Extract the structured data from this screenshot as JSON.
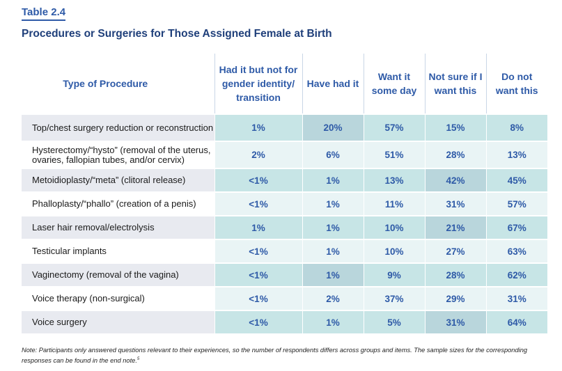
{
  "table_label": "Table 2.4",
  "title": "Procedures or Surgeries for Those Assigned Female at Birth",
  "headers": [
    "Type of Procedure",
    "Had it but not for gender identity/ transition",
    "Have had it",
    "Want it some day",
    "Not sure if I want this",
    "Do not want this"
  ],
  "rows": [
    {
      "name": "Top/chest surgery reduction or reconstruction",
      "values": [
        "1%",
        "20%",
        "57%",
        "15%",
        "8%"
      ]
    },
    {
      "name": "Hysterectomy/“hysto” (removal of the uterus, ovaries, fallopian tubes, and/or cervix)",
      "values": [
        "2%",
        "6%",
        "51%",
        "28%",
        "13%"
      ]
    },
    {
      "name": "Metoidioplasty/“meta” (clitoral release)",
      "values": [
        "<1%",
        "1%",
        "13%",
        "42%",
        "45%"
      ]
    },
    {
      "name": "Phalloplasty/“phallo” (creation of a penis)",
      "values": [
        "<1%",
        "1%",
        "11%",
        "31%",
        "57%"
      ]
    },
    {
      "name": "Laser hair removal/electrolysis",
      "values": [
        "1%",
        "1%",
        "10%",
        "21%",
        "67%"
      ]
    },
    {
      "name": "Testicular implants",
      "values": [
        "<1%",
        "1%",
        "10%",
        "27%",
        "63%"
      ]
    },
    {
      "name": "Vaginectomy (removal of the vagina)",
      "values": [
        "<1%",
        "1%",
        "9%",
        "28%",
        "62%"
      ]
    },
    {
      "name": "Voice therapy (non-surgical)",
      "values": [
        "<1%",
        "2%",
        "37%",
        "29%",
        "31%"
      ]
    },
    {
      "name": "Voice surgery",
      "values": [
        "<1%",
        "1%",
        "5%",
        "31%",
        "64%"
      ]
    }
  ],
  "note": "Note: Participants only answered questions relevant to their experiences, so the number of respondents differs across groups and items. The sample sizes for the corresponding responses can be found in the end note.",
  "note_ref": "5",
  "colors": {
    "accent": "#2e5aa7",
    "title": "#1f3f7a",
    "name_cell_alt": "#e8eaf0",
    "value_cell_alt": "#c7e5e6",
    "value_cell_dark": "#b9d6dc",
    "value_cell_light": "#e9f4f5"
  }
}
